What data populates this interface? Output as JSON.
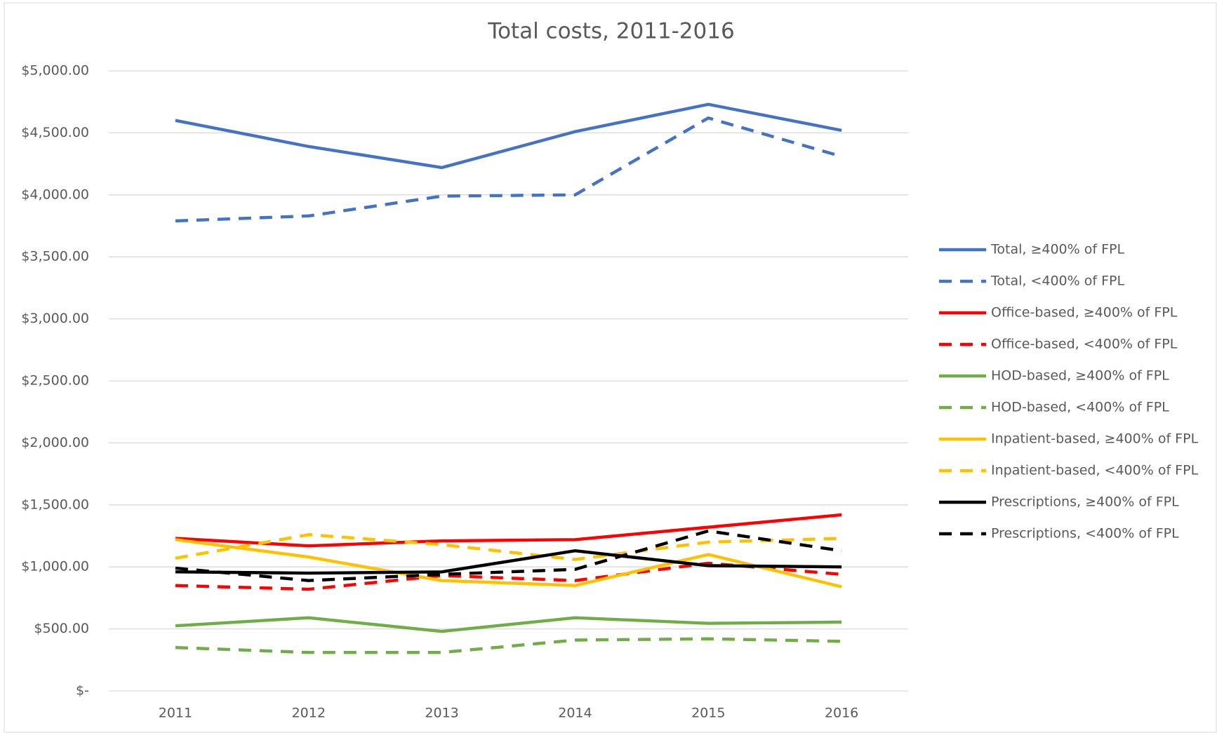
{
  "chart_data": {
    "type": "line",
    "title": "Total costs, 2011-2016",
    "categories": [
      "2011",
      "2012",
      "2013",
      "2014",
      "2015",
      "2016"
    ],
    "ylim": [
      0,
      5000
    ],
    "yticks": [
      {
        "value": 0,
        "label": "$-"
      },
      {
        "value": 500,
        "label": "$500.00"
      },
      {
        "value": 1000,
        "label": "$1,000.00"
      },
      {
        "value": 1500,
        "label": "$1,500.00"
      },
      {
        "value": 2000,
        "label": "$2,000.00"
      },
      {
        "value": 2500,
        "label": "$2,500.00"
      },
      {
        "value": 3000,
        "label": "$3,000.00"
      },
      {
        "value": 3500,
        "label": "$3,500.00"
      },
      {
        "value": 4000,
        "label": "$4,000.00"
      },
      {
        "value": 4500,
        "label": "$4,500.00"
      },
      {
        "value": 5000,
        "label": "$5,000.00"
      }
    ],
    "grid": true,
    "legend": "right",
    "series": [
      {
        "name": "Total, ≥400% of FPL",
        "color": "#4472c4",
        "style": "solid",
        "values": [
          4600,
          4390,
          4220,
          4510,
          4730,
          4520
        ]
      },
      {
        "name": "Total, <400% of FPL",
        "color": "#4472c4",
        "style": "dashed",
        "values": [
          3790,
          3830,
          3990,
          4000,
          4620,
          4310
        ]
      },
      {
        "name": "Office-based, ≥400% of FPL",
        "color": "#ff0000",
        "style": "solid",
        "values": [
          1230,
          1170,
          1210,
          1220,
          1320,
          1420
        ]
      },
      {
        "name": "Office-based, <400% of FPL",
        "color": "#ff0000",
        "style": "dashed",
        "values": [
          850,
          820,
          930,
          890,
          1030,
          940
        ]
      },
      {
        "name": "HOD-based, ≥400% of FPL",
        "color": "#70ad47",
        "style": "solid",
        "values": [
          525,
          590,
          480,
          590,
          545,
          555
        ]
      },
      {
        "name": "HOD-based, <400% of FPL",
        "color": "#70ad47",
        "style": "dashed",
        "values": [
          350,
          310,
          310,
          410,
          420,
          400
        ]
      },
      {
        "name": "Inpatient-based, ≥400% of FPL",
        "color": "#ffc000",
        "style": "solid",
        "values": [
          1220,
          1080,
          890,
          850,
          1100,
          840
        ]
      },
      {
        "name": "Inpatient-based, <400% of FPL",
        "color": "#ffc000",
        "style": "dashed",
        "values": [
          1070,
          1260,
          1180,
          1060,
          1200,
          1230
        ]
      },
      {
        "name": "Prescriptions, ≥400% of FPL",
        "color": "#000000",
        "style": "solid",
        "values": [
          960,
          950,
          960,
          1130,
          1010,
          1000
        ]
      },
      {
        "name": "Prescriptions, <400% of FPL",
        "color": "#000000",
        "style": "dashed",
        "values": [
          990,
          890,
          940,
          980,
          1290,
          1130
        ]
      }
    ]
  }
}
